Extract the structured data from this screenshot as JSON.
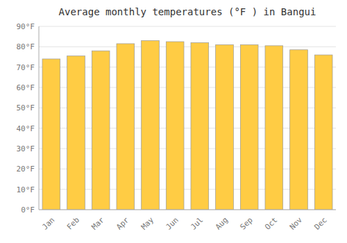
{
  "chart_data": {
    "type": "bar",
    "title": "Average monthly temperatures (°F ) in Bangui",
    "categories": [
      "Jan",
      "Feb",
      "Mar",
      "Apr",
      "May",
      "Jun",
      "Jul",
      "Aug",
      "Sep",
      "Oct",
      "Nov",
      "Dec"
    ],
    "values": [
      74,
      75.5,
      78,
      81.5,
      83,
      82.5,
      82,
      81,
      81,
      80.5,
      78.5,
      76
    ],
    "color": "#FFCC44",
    "ylim": [
      0,
      90
    ],
    "yticks": [
      {
        "value": 0,
        "label": "0°F"
      },
      {
        "value": 10,
        "label": "10°F"
      },
      {
        "value": 20,
        "label": "20°F"
      },
      {
        "value": 30,
        "label": "30°F"
      },
      {
        "value": 40,
        "label": "40°F"
      },
      {
        "value": 50,
        "label": "50°F"
      },
      {
        "value": 60,
        "label": "60°F"
      },
      {
        "value": 70,
        "label": "70°F"
      },
      {
        "value": 80,
        "label": "80°F"
      },
      {
        "value": 90,
        "label": "90°F"
      }
    ],
    "grid": true
  }
}
